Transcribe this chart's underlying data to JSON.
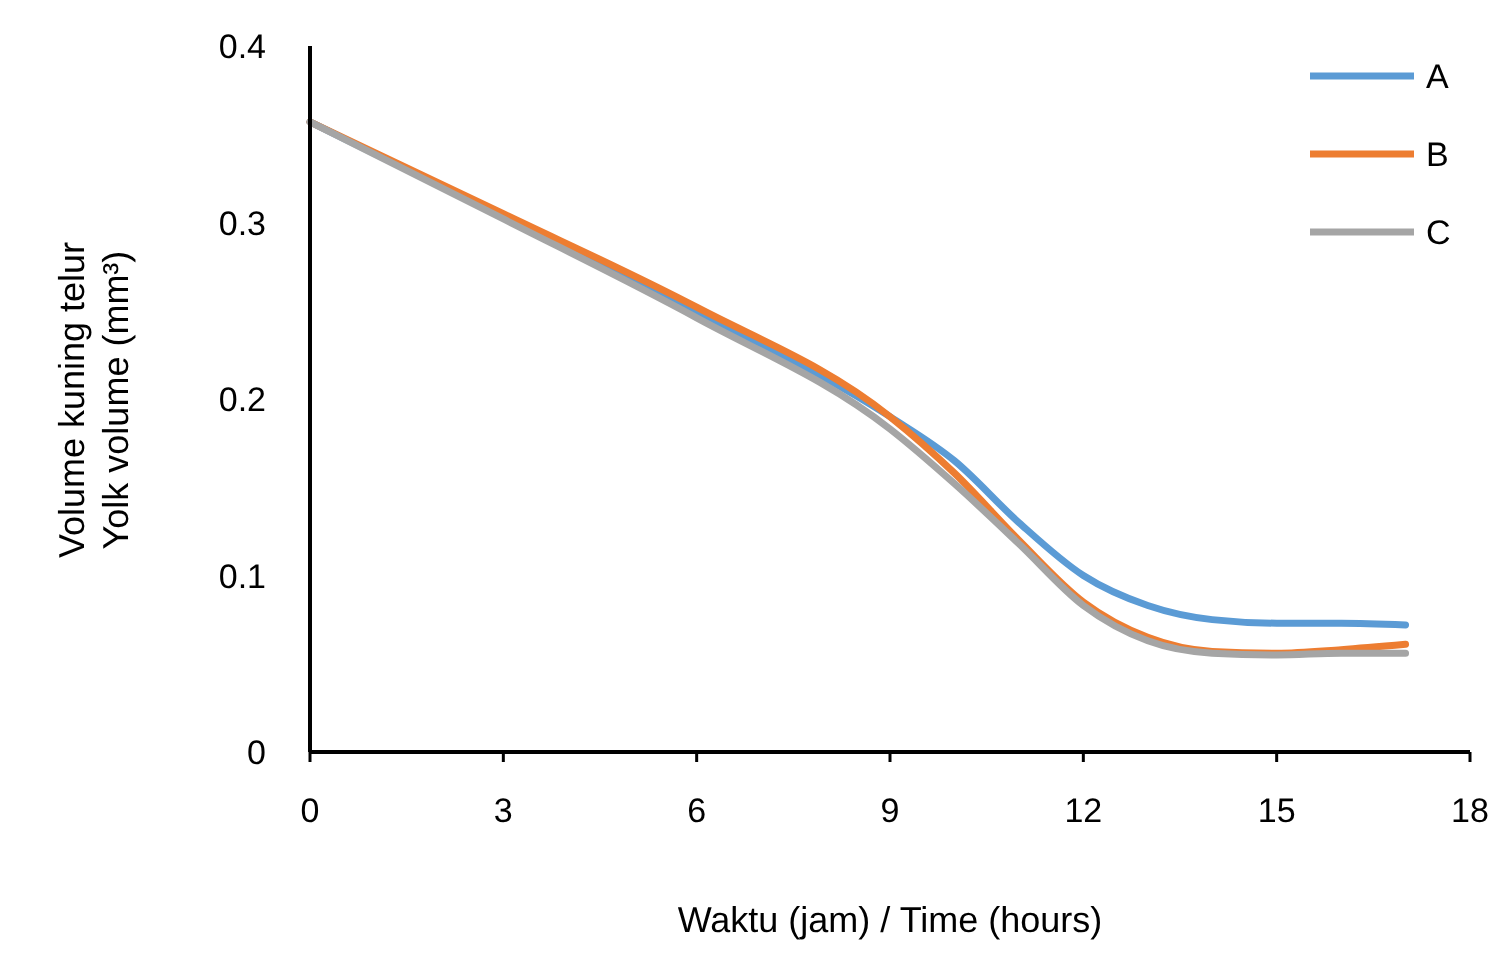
{
  "chart_data": {
    "type": "line",
    "xlabel": "Waktu (jam) / Time (hours)",
    "ylabel": "Volume kuning telur\nYolk volume (mm³)",
    "x": [
      0,
      3,
      6,
      9,
      10,
      11,
      12,
      13,
      14,
      15,
      16,
      17
    ],
    "series": [
      {
        "name": "A",
        "color": "#5b9bd5",
        "values": [
          0.357,
          0.303,
          0.249,
          0.19,
          0.165,
          0.13,
          0.1,
          0.083,
          0.075,
          0.073,
          0.073,
          0.072
        ]
      },
      {
        "name": "B",
        "color": "#ed7d31",
        "values": [
          0.357,
          0.305,
          0.252,
          0.19,
          0.158,
          0.12,
          0.085,
          0.065,
          0.057,
          0.056,
          0.058,
          0.061
        ]
      },
      {
        "name": "C",
        "color": "#a5a5a5",
        "values": [
          0.357,
          0.302,
          0.246,
          0.183,
          0.152,
          0.118,
          0.083,
          0.063,
          0.056,
          0.055,
          0.056,
          0.056
        ]
      }
    ],
    "xlim": [
      0,
      18
    ],
    "xticks": [
      0,
      3,
      6,
      9,
      12,
      15,
      18
    ],
    "ylim": [
      0,
      0.4
    ],
    "yticks": [
      0,
      0.1,
      0.2,
      0.3,
      0.4
    ],
    "grid": false,
    "legend": "top right",
    "line_style": "solid"
  }
}
